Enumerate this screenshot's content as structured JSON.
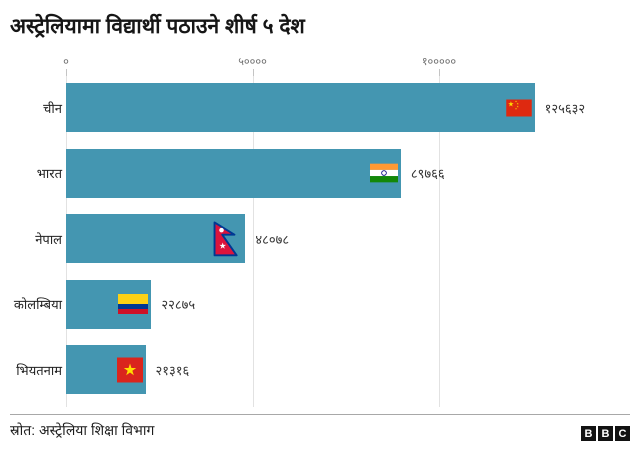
{
  "chart_data": {
    "type": "bar",
    "orientation": "horizontal",
    "title": "अस्ट्रेलियामा विद्यार्थी पठाउने शीर्ष ५ देश",
    "categories": [
      "चीन",
      "भारत",
      "नेपाल",
      "कोलम्बिया",
      "भियतनाम"
    ],
    "categories_en": [
      "China",
      "India",
      "Nepal",
      "Colombia",
      "Vietnam"
    ],
    "values": [
      125632,
      89766,
      48078,
      22875,
      21316
    ],
    "value_labels": [
      "१२५६३२",
      "८९७६६",
      "४८०७८",
      "२२८७५",
      "२१३१६"
    ],
    "flags": [
      "china",
      "india",
      "nepal",
      "colombia",
      "vietnam"
    ],
    "xlim": [
      0,
      135000
    ],
    "xticks": [
      {
        "value": 0,
        "label": "०"
      },
      {
        "value": 50000,
        "label": "५००००"
      },
      {
        "value": 100000,
        "label": "१०००००"
      }
    ],
    "grid": true,
    "legend": false,
    "xlabel": "",
    "ylabel": ""
  },
  "footer": {
    "source": "स्रोत: अस्ट्रेलिया शिक्षा विभाग",
    "bbc_letters": [
      "B",
      "B",
      "C"
    ]
  },
  "colors": {
    "bar": "#4496b1",
    "grid": "#e2e2e2",
    "tick": "#c4c4c4",
    "axis_label": "#6f6f6f",
    "title": "#161616",
    "value_label": "#333333",
    "category_label": "#222222",
    "divider": "#a8a8a8",
    "bbc_block": "#121212",
    "flag_palette": {
      "china_red": "#de2910",
      "star_yellow": "#ffde00",
      "india_saffron": "#ff9933",
      "india_green": "#138808",
      "india_navy": "#000080",
      "india_white": "#ffffff",
      "nepal_crimson": "#dc143c",
      "nepal_blue": "#003893",
      "nepal_white": "#ffffff",
      "colombia_yellow": "#fcd116",
      "colombia_blue": "#003893",
      "colombia_red": "#ce1126",
      "vietnam_red": "#da251d"
    }
  }
}
